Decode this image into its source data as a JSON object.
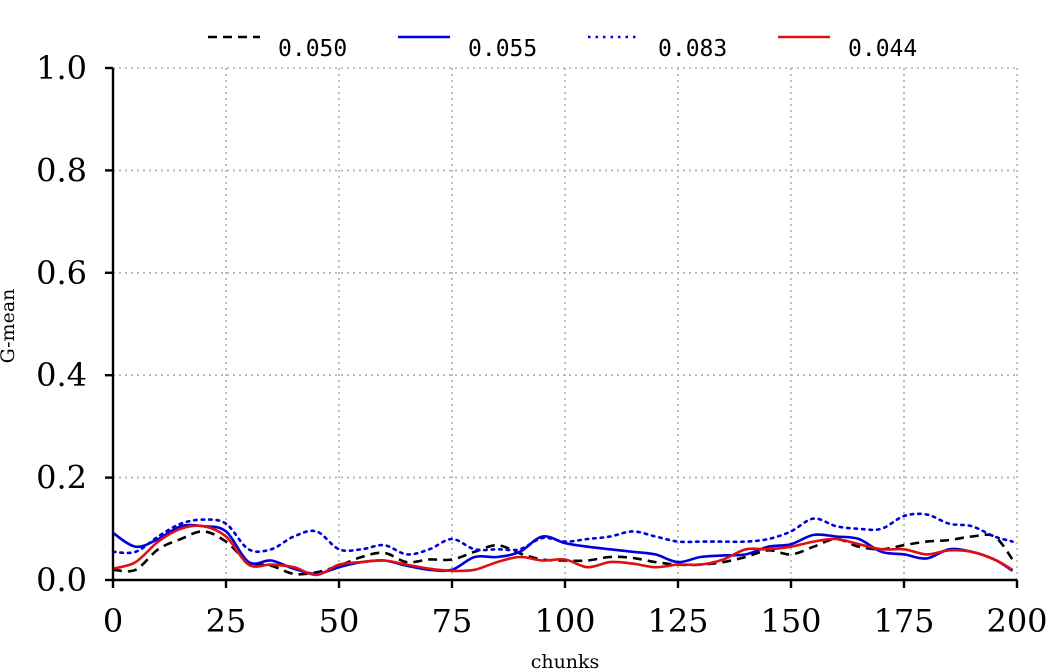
{
  "chart_data": {
    "type": "line",
    "title": "",
    "xlabel": "chunks",
    "ylabel": "G-mean",
    "xlim": [
      0,
      200
    ],
    "ylim": [
      0.0,
      1.0
    ],
    "xticks": [
      0,
      25,
      50,
      75,
      100,
      125,
      150,
      175,
      200
    ],
    "xtick_labels": [
      "0",
      "25",
      "50",
      "75",
      "100",
      "125",
      "150",
      "175",
      "200"
    ],
    "yticks": [
      0.0,
      0.2,
      0.4,
      0.6,
      0.8,
      1.0
    ],
    "ytick_labels": [
      "0.0",
      "0.2",
      "0.4",
      "0.6",
      "0.8",
      "1.0"
    ],
    "grid": true,
    "legend_position": "top",
    "x": [
      0,
      5,
      10,
      15,
      20,
      25,
      30,
      35,
      40,
      45,
      50,
      55,
      60,
      65,
      70,
      75,
      80,
      85,
      90,
      95,
      100,
      105,
      110,
      115,
      120,
      125,
      130,
      135,
      140,
      145,
      150,
      155,
      160,
      165,
      170,
      175,
      180,
      185,
      190,
      195,
      199
    ],
    "series": [
      {
        "name": "0.050",
        "color": "#000000",
        "style": "dashed",
        "values": [
          0.02,
          0.02,
          0.06,
          0.08,
          0.095,
          0.075,
          0.035,
          0.028,
          0.012,
          0.015,
          0.028,
          0.045,
          0.053,
          0.035,
          0.04,
          0.04,
          0.055,
          0.068,
          0.052,
          0.04,
          0.038,
          0.038,
          0.045,
          0.043,
          0.035,
          0.03,
          0.03,
          0.035,
          0.045,
          0.058,
          0.05,
          0.065,
          0.08,
          0.065,
          0.06,
          0.068,
          0.075,
          0.078,
          0.085,
          0.085,
          0.04
        ]
      },
      {
        "name": "0.055",
        "color": "#0000dd",
        "style": "solid",
        "values": [
          0.092,
          0.065,
          0.08,
          0.105,
          0.105,
          0.095,
          0.035,
          0.038,
          0.022,
          0.012,
          0.025,
          0.035,
          0.038,
          0.028,
          0.02,
          0.02,
          0.045,
          0.045,
          0.055,
          0.085,
          0.072,
          0.065,
          0.06,
          0.055,
          0.05,
          0.035,
          0.045,
          0.048,
          0.05,
          0.065,
          0.07,
          0.088,
          0.085,
          0.08,
          0.055,
          0.05,
          0.042,
          0.06,
          0.055,
          0.04,
          0.018
        ]
      },
      {
        "name": "0.083",
        "color": "#0000dd",
        "style": "dotted",
        "values": [
          0.055,
          0.055,
          0.085,
          0.11,
          0.118,
          0.11,
          0.06,
          0.06,
          0.085,
          0.095,
          0.06,
          0.06,
          0.068,
          0.05,
          0.06,
          0.08,
          0.06,
          0.06,
          0.06,
          0.082,
          0.075,
          0.08,
          0.085,
          0.095,
          0.085,
          0.075,
          0.075,
          0.075,
          0.075,
          0.08,
          0.095,
          0.12,
          0.105,
          0.1,
          0.1,
          0.125,
          0.128,
          0.11,
          0.105,
          0.085,
          0.075
        ]
      },
      {
        "name": "0.044",
        "color": "#dd1111",
        "style": "solid",
        "values": [
          0.022,
          0.035,
          0.075,
          0.1,
          0.105,
          0.085,
          0.03,
          0.03,
          0.025,
          0.01,
          0.03,
          0.035,
          0.038,
          0.03,
          0.022,
          0.018,
          0.02,
          0.035,
          0.045,
          0.038,
          0.04,
          0.025,
          0.035,
          0.032,
          0.025,
          0.03,
          0.03,
          0.04,
          0.06,
          0.06,
          0.065,
          0.075,
          0.08,
          0.07,
          0.06,
          0.06,
          0.05,
          0.058,
          0.055,
          0.04,
          0.02
        ]
      }
    ]
  }
}
